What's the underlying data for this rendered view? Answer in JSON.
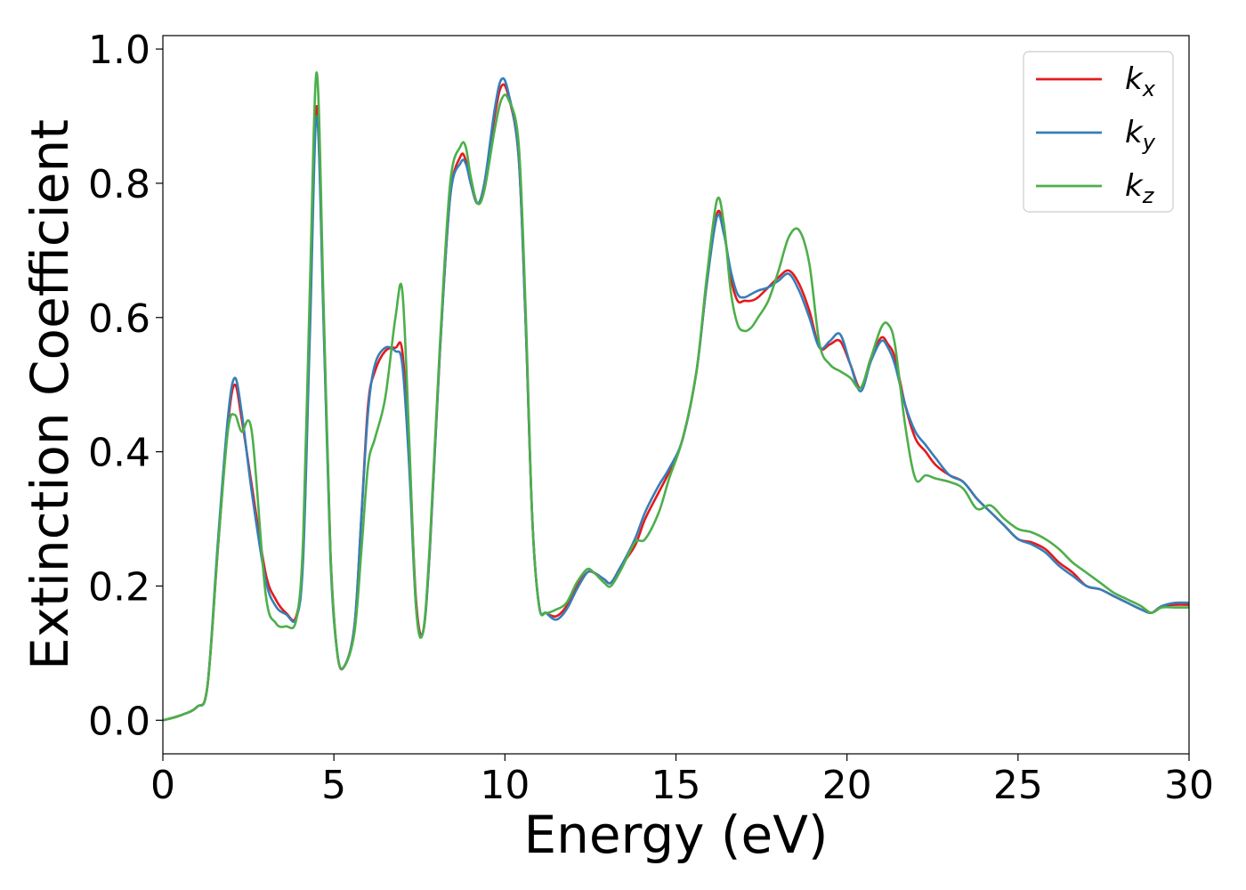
{
  "chart_data": {
    "type": "line",
    "title": "",
    "xlabel": "Energy (eV)",
    "ylabel": "Extinction Coefficient",
    "xlim": [
      0,
      30
    ],
    "ylim": [
      -0.05,
      1.02
    ],
    "xticks": [
      0,
      5,
      10,
      15,
      20,
      25,
      30
    ],
    "xtick_labels": [
      "0",
      "5",
      "10",
      "15",
      "20",
      "25",
      "30"
    ],
    "yticks": [
      0.0,
      0.2,
      0.4,
      0.6,
      0.8,
      1.0
    ],
    "ytick_labels": [
      "0.0",
      "0.2",
      "0.4",
      "0.6",
      "0.8",
      "1.0"
    ],
    "grid": false,
    "legend_position": "top-right",
    "series": [
      {
        "name": "k_x",
        "label_main": "k",
        "label_sub": "x",
        "color": "#e41a1c",
        "x": [
          0,
          0.5,
          1.0,
          1.3,
          1.6,
          1.9,
          2.1,
          2.3,
          2.6,
          3.0,
          3.3,
          3.6,
          3.9,
          4.1,
          4.3,
          4.5,
          4.7,
          4.9,
          5.1,
          5.3,
          5.6,
          5.8,
          6.0,
          6.2,
          6.5,
          6.8,
          7.0,
          7.2,
          7.4,
          7.6,
          7.8,
          8.1,
          8.4,
          8.7,
          8.85,
          9.0,
          9.2,
          9.4,
          9.7,
          9.9,
          10.1,
          10.4,
          10.6,
          10.8,
          11.0,
          11.2,
          11.5,
          11.8,
          12.1,
          12.4,
          12.6,
          12.9,
          13.1,
          13.4,
          13.8,
          14.1,
          14.5,
          14.8,
          15.2,
          15.6,
          15.9,
          16.2,
          16.4,
          16.6,
          16.8,
          17.0,
          17.2,
          17.4,
          17.7,
          18.0,
          18.3,
          18.6,
          18.9,
          19.2,
          19.5,
          19.8,
          20.1,
          20.4,
          20.7,
          21.0,
          21.2,
          21.4,
          21.7,
          22.0,
          22.3,
          22.6,
          23.0,
          23.4,
          23.8,
          24.2,
          24.6,
          25.0,
          25.4,
          25.8,
          26.2,
          26.6,
          27.0,
          27.4,
          27.8,
          28.2,
          28.6,
          28.9,
          29.2,
          29.6,
          30.0
        ],
        "y": [
          0.0,
          0.007,
          0.02,
          0.05,
          0.25,
          0.44,
          0.5,
          0.45,
          0.35,
          0.22,
          0.18,
          0.16,
          0.155,
          0.25,
          0.6,
          0.915,
          0.6,
          0.25,
          0.1,
          0.08,
          0.14,
          0.3,
          0.47,
          0.52,
          0.55,
          0.555,
          0.55,
          0.4,
          0.18,
          0.13,
          0.25,
          0.55,
          0.78,
          0.84,
          0.835,
          0.8,
          0.77,
          0.8,
          0.9,
          0.945,
          0.93,
          0.84,
          0.6,
          0.3,
          0.17,
          0.16,
          0.155,
          0.17,
          0.2,
          0.22,
          0.22,
          0.21,
          0.205,
          0.23,
          0.26,
          0.3,
          0.34,
          0.37,
          0.42,
          0.52,
          0.65,
          0.755,
          0.73,
          0.66,
          0.625,
          0.625,
          0.625,
          0.63,
          0.645,
          0.66,
          0.67,
          0.65,
          0.61,
          0.555,
          0.56,
          0.565,
          0.53,
          0.495,
          0.54,
          0.57,
          0.56,
          0.54,
          0.47,
          0.42,
          0.4,
          0.38,
          0.365,
          0.355,
          0.33,
          0.31,
          0.29,
          0.27,
          0.265,
          0.255,
          0.235,
          0.22,
          0.2,
          0.195,
          0.185,
          0.175,
          0.165,
          0.16,
          0.17,
          0.172,
          0.172
        ]
      },
      {
        "name": "k_y",
        "label_main": "k",
        "label_sub": "y",
        "color": "#377eb8",
        "x": [
          0,
          0.5,
          1.0,
          1.3,
          1.6,
          1.9,
          2.1,
          2.3,
          2.6,
          3.0,
          3.3,
          3.6,
          3.9,
          4.1,
          4.3,
          4.5,
          4.7,
          4.9,
          5.1,
          5.3,
          5.6,
          5.8,
          6.0,
          6.2,
          6.5,
          6.8,
          7.0,
          7.2,
          7.4,
          7.6,
          7.8,
          8.1,
          8.4,
          8.7,
          8.85,
          9.0,
          9.2,
          9.4,
          9.7,
          9.9,
          10.1,
          10.4,
          10.6,
          10.8,
          11.0,
          11.2,
          11.5,
          11.8,
          12.1,
          12.4,
          12.6,
          12.9,
          13.1,
          13.4,
          13.8,
          14.1,
          14.5,
          14.8,
          15.2,
          15.6,
          15.9,
          16.2,
          16.4,
          16.6,
          16.8,
          17.0,
          17.2,
          17.4,
          17.7,
          18.0,
          18.3,
          18.6,
          18.9,
          19.2,
          19.5,
          19.8,
          20.1,
          20.4,
          20.7,
          21.0,
          21.2,
          21.4,
          21.7,
          22.0,
          22.3,
          22.6,
          23.0,
          23.4,
          23.8,
          24.2,
          24.6,
          25.0,
          25.4,
          25.8,
          26.2,
          26.6,
          27.0,
          27.4,
          27.8,
          28.2,
          28.6,
          28.9,
          29.2,
          29.6,
          30.0
        ],
        "y": [
          0.0,
          0.007,
          0.02,
          0.05,
          0.26,
          0.45,
          0.51,
          0.46,
          0.34,
          0.21,
          0.17,
          0.158,
          0.152,
          0.24,
          0.58,
          0.9,
          0.59,
          0.24,
          0.1,
          0.08,
          0.14,
          0.3,
          0.46,
          0.53,
          0.555,
          0.55,
          0.53,
          0.38,
          0.17,
          0.13,
          0.25,
          0.55,
          0.78,
          0.83,
          0.83,
          0.8,
          0.77,
          0.8,
          0.91,
          0.955,
          0.935,
          0.84,
          0.6,
          0.3,
          0.17,
          0.16,
          0.15,
          0.165,
          0.195,
          0.22,
          0.22,
          0.21,
          0.205,
          0.23,
          0.27,
          0.31,
          0.35,
          0.375,
          0.42,
          0.52,
          0.65,
          0.75,
          0.725,
          0.67,
          0.635,
          0.63,
          0.635,
          0.64,
          0.645,
          0.655,
          0.665,
          0.64,
          0.6,
          0.555,
          0.565,
          0.575,
          0.53,
          0.49,
          0.535,
          0.565,
          0.555,
          0.53,
          0.47,
          0.43,
          0.41,
          0.39,
          0.365,
          0.355,
          0.33,
          0.31,
          0.29,
          0.27,
          0.262,
          0.25,
          0.23,
          0.215,
          0.2,
          0.195,
          0.185,
          0.175,
          0.165,
          0.16,
          0.17,
          0.175,
          0.175
        ]
      },
      {
        "name": "k_z",
        "label_main": "k",
        "label_sub": "z",
        "color": "#4daf4a",
        "x": [
          0,
          0.5,
          1.0,
          1.3,
          1.6,
          1.9,
          2.1,
          2.3,
          2.6,
          3.0,
          3.3,
          3.6,
          3.9,
          4.1,
          4.3,
          4.5,
          4.7,
          4.9,
          5.1,
          5.3,
          5.6,
          5.8,
          6.0,
          6.2,
          6.5,
          6.8,
          7.0,
          7.2,
          7.4,
          7.6,
          7.8,
          8.1,
          8.4,
          8.7,
          8.85,
          9.0,
          9.2,
          9.4,
          9.7,
          9.9,
          10.1,
          10.4,
          10.6,
          10.8,
          11.0,
          11.2,
          11.5,
          11.8,
          12.1,
          12.4,
          12.6,
          12.9,
          13.1,
          13.4,
          13.8,
          14.1,
          14.5,
          14.8,
          15.2,
          15.6,
          15.9,
          16.2,
          16.4,
          16.6,
          16.8,
          17.0,
          17.2,
          17.4,
          17.7,
          18.0,
          18.3,
          18.6,
          18.9,
          19.2,
          19.5,
          19.8,
          20.1,
          20.4,
          20.7,
          21.0,
          21.2,
          21.4,
          21.7,
          22.0,
          22.3,
          22.6,
          23.0,
          23.4,
          23.8,
          24.2,
          24.6,
          25.0,
          25.4,
          25.8,
          26.2,
          26.6,
          27.0,
          27.4,
          27.8,
          28.2,
          28.6,
          28.9,
          29.2,
          29.6,
          30.0
        ],
        "y": [
          0.0,
          0.007,
          0.02,
          0.05,
          0.25,
          0.43,
          0.455,
          0.43,
          0.43,
          0.19,
          0.145,
          0.14,
          0.15,
          0.27,
          0.65,
          0.965,
          0.62,
          0.25,
          0.1,
          0.08,
          0.13,
          0.25,
          0.38,
          0.42,
          0.48,
          0.6,
          0.64,
          0.42,
          0.17,
          0.13,
          0.26,
          0.56,
          0.8,
          0.855,
          0.855,
          0.81,
          0.77,
          0.79,
          0.88,
          0.925,
          0.925,
          0.86,
          0.62,
          0.3,
          0.17,
          0.16,
          0.165,
          0.175,
          0.205,
          0.225,
          0.22,
          0.205,
          0.2,
          0.225,
          0.265,
          0.27,
          0.31,
          0.36,
          0.42,
          0.52,
          0.66,
          0.775,
          0.74,
          0.64,
          0.59,
          0.58,
          0.585,
          0.6,
          0.625,
          0.67,
          0.72,
          0.73,
          0.68,
          0.56,
          0.53,
          0.52,
          0.51,
          0.495,
          0.54,
          0.585,
          0.59,
          0.56,
          0.44,
          0.36,
          0.365,
          0.36,
          0.355,
          0.345,
          0.315,
          0.32,
          0.3,
          0.285,
          0.28,
          0.27,
          0.255,
          0.235,
          0.22,
          0.205,
          0.19,
          0.18,
          0.17,
          0.16,
          0.168,
          0.168,
          0.168
        ]
      }
    ]
  }
}
